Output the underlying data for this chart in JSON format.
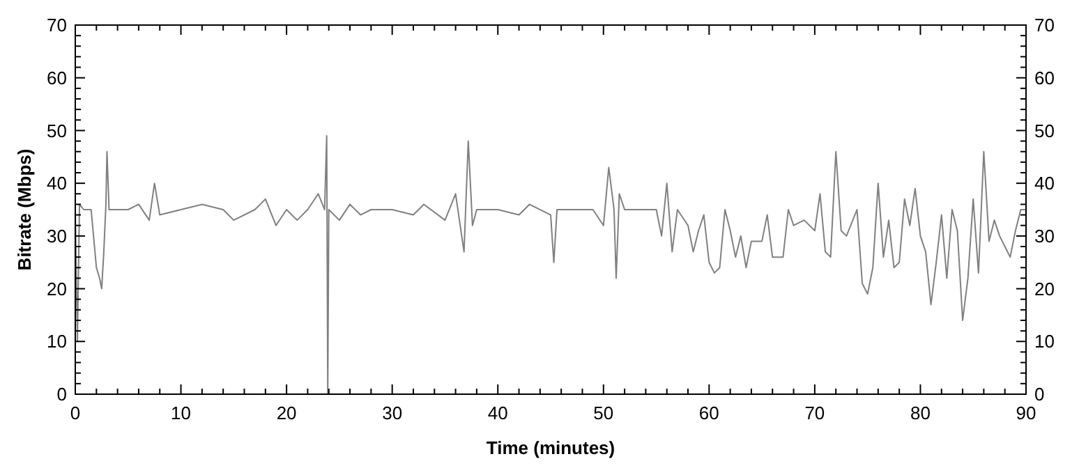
{
  "chart_data": {
    "type": "line",
    "xlabel": "Time (minutes)",
    "ylabel": "Bitrate (Mbps)",
    "xlim": [
      0,
      90
    ],
    "ylim": [
      0,
      70
    ],
    "y2lim": [
      0,
      70
    ],
    "xticks": [
      0,
      {
        "value": 2,
        "label": null
      },
      {
        "value": 4,
        "label": null
      },
      {
        "value": 6,
        "label": null
      },
      {
        "value": 8,
        "label": null
      },
      10,
      {
        "value": 12,
        "label": null
      },
      {
        "value": 14,
        "label": null
      },
      {
        "value": 16,
        "label": null
      },
      {
        "value": 18,
        "label": null
      },
      20,
      {
        "value": 22,
        "label": null
      },
      {
        "value": 24,
        "label": null
      },
      {
        "value": 26,
        "label": null
      },
      {
        "value": 28,
        "label": null
      },
      30,
      {
        "value": 32,
        "label": null
      },
      {
        "value": 34,
        "label": null
      },
      {
        "value": 36,
        "label": null
      },
      {
        "value": 38,
        "label": null
      },
      40,
      {
        "value": 42,
        "label": null
      },
      {
        "value": 44,
        "label": null
      },
      {
        "value": 46,
        "label": null
      },
      {
        "value": 48,
        "label": null
      },
      50,
      {
        "value": 52,
        "label": null
      },
      {
        "value": 54,
        "label": null
      },
      {
        "value": 56,
        "label": null
      },
      {
        "value": 58,
        "label": null
      },
      60,
      {
        "value": 62,
        "label": null
      },
      {
        "value": 64,
        "label": null
      },
      {
        "value": 66,
        "label": null
      },
      {
        "value": 68,
        "label": null
      },
      70,
      {
        "value": 72,
        "label": null
      },
      {
        "value": 74,
        "label": null
      },
      {
        "value": 76,
        "label": null
      },
      {
        "value": 78,
        "label": null
      },
      80,
      {
        "value": 82,
        "label": null
      },
      {
        "value": 84,
        "label": null
      },
      {
        "value": 86,
        "label": null
      },
      {
        "value": 88,
        "label": null
      },
      90
    ],
    "yticks": [
      0,
      {
        "value": 2,
        "label": null
      },
      {
        "value": 4,
        "label": null
      },
      {
        "value": 6,
        "label": null
      },
      {
        "value": 8,
        "label": null
      },
      10,
      {
        "value": 12,
        "label": null
      },
      {
        "value": 14,
        "label": null
      },
      {
        "value": 16,
        "label": null
      },
      {
        "value": 18,
        "label": null
      },
      20,
      {
        "value": 22,
        "label": null
      },
      {
        "value": 24,
        "label": null
      },
      {
        "value": 26,
        "label": null
      },
      {
        "value": 28,
        "label": null
      },
      30,
      {
        "value": 32,
        "label": null
      },
      {
        "value": 34,
        "label": null
      },
      {
        "value": 36,
        "label": null
      },
      {
        "value": 38,
        "label": null
      },
      40,
      {
        "value": 42,
        "label": null
      },
      {
        "value": 44,
        "label": null
      },
      {
        "value": 46,
        "label": null
      },
      {
        "value": 48,
        "label": null
      },
      50,
      {
        "value": 52,
        "label": null
      },
      {
        "value": 54,
        "label": null
      },
      {
        "value": 56,
        "label": null
      },
      {
        "value": 58,
        "label": null
      },
      60,
      {
        "value": 62,
        "label": null
      },
      {
        "value": 64,
        "label": null
      },
      {
        "value": 66,
        "label": null
      },
      {
        "value": 68,
        "label": null
      },
      70
    ],
    "y2ticks": [
      0,
      {
        "value": 2,
        "label": null
      },
      {
        "value": 4,
        "label": null
      },
      {
        "value": 6,
        "label": null
      },
      {
        "value": 8,
        "label": null
      },
      10,
      {
        "value": 12,
        "label": null
      },
      {
        "value": 14,
        "label": null
      },
      {
        "value": 16,
        "label": null
      },
      {
        "value": 18,
        "label": null
      },
      20,
      {
        "value": 22,
        "label": null
      },
      {
        "value": 24,
        "label": null
      },
      {
        "value": 26,
        "label": null
      },
      {
        "value": 28,
        "label": null
      },
      30,
      {
        "value": 32,
        "label": null
      },
      {
        "value": 34,
        "label": null
      },
      {
        "value": 36,
        "label": null
      },
      {
        "value": 38,
        "label": null
      },
      40,
      {
        "value": 42,
        "label": null
      },
      {
        "value": 44,
        "label": null
      },
      {
        "value": 46,
        "label": null
      },
      {
        "value": 48,
        "label": null
      },
      50,
      {
        "value": 52,
        "label": null
      },
      {
        "value": 54,
        "label": null
      },
      {
        "value": 56,
        "label": null
      },
      {
        "value": 58,
        "label": null
      },
      60,
      {
        "value": 62,
        "label": null
      },
      {
        "value": 64,
        "label": null
      },
      {
        "value": 66,
        "label": null
      },
      {
        "value": 68,
        "label": null
      },
      70
    ],
    "grid": false,
    "series": [
      {
        "color": "#808080",
        "x": [
          0,
          0.2,
          0.4,
          0.8,
          1.5,
          2.0,
          2.3,
          2.5,
          2.7,
          2.9,
          3.0,
          3.2,
          5,
          6,
          7,
          7.5,
          8,
          10,
          12,
          14,
          15,
          17,
          18,
          19,
          20,
          21,
          22,
          23,
          23.6,
          23.8,
          23.9,
          24.0,
          25,
          26,
          27,
          28,
          30,
          32,
          33,
          35,
          36,
          36.8,
          37.2,
          37.6,
          38,
          40,
          42,
          43,
          45,
          45.3,
          45.6,
          47,
          49,
          50,
          50.5,
          51,
          51.2,
          51.5,
          52,
          55,
          55.5,
          56,
          56.5,
          57,
          58,
          58.5,
          59,
          59.5,
          60,
          60.5,
          61,
          61.5,
          62,
          62.5,
          63,
          63.5,
          64,
          65,
          65.5,
          66,
          67,
          67.5,
          68,
          69,
          70,
          70.5,
          71,
          71.5,
          72,
          72.5,
          73,
          74,
          74.5,
          75,
          75.5,
          76,
          76.5,
          77,
          77.5,
          78,
          78.5,
          79,
          79.5,
          80,
          80.5,
          81,
          81.5,
          82,
          82.5,
          83,
          83.5,
          84,
          84.5,
          85,
          85.5,
          86,
          86.5,
          87,
          87.5,
          88,
          88.5,
          89,
          89.5,
          90
        ],
        "values": [
          35,
          10,
          36,
          35,
          35,
          24,
          22,
          20,
          27,
          36,
          46,
          35,
          35,
          36,
          33,
          40,
          34,
          35,
          36,
          35,
          33,
          35,
          37,
          32,
          35,
          33,
          35,
          38,
          35,
          49,
          0,
          35,
          33,
          36,
          34,
          35,
          35,
          34,
          36,
          33,
          38,
          27,
          48,
          32,
          35,
          35,
          34,
          36,
          34,
          25,
          35,
          35,
          35,
          32,
          43,
          35,
          22,
          38,
          35,
          35,
          30,
          40,
          27,
          35,
          32,
          27,
          31,
          34,
          25,
          23,
          24,
          35,
          31,
          26,
          30,
          24,
          29,
          29,
          34,
          26,
          26,
          35,
          32,
          33,
          31,
          38,
          27,
          26,
          46,
          31,
          30,
          35,
          21,
          19,
          24,
          40,
          26,
          33,
          24,
          25,
          37,
          32,
          39,
          30,
          27,
          17,
          25,
          34,
          22,
          35,
          31,
          14,
          22,
          37,
          23,
          46,
          29,
          33,
          30,
          28,
          26,
          31,
          35,
          35
        ]
      }
    ]
  }
}
